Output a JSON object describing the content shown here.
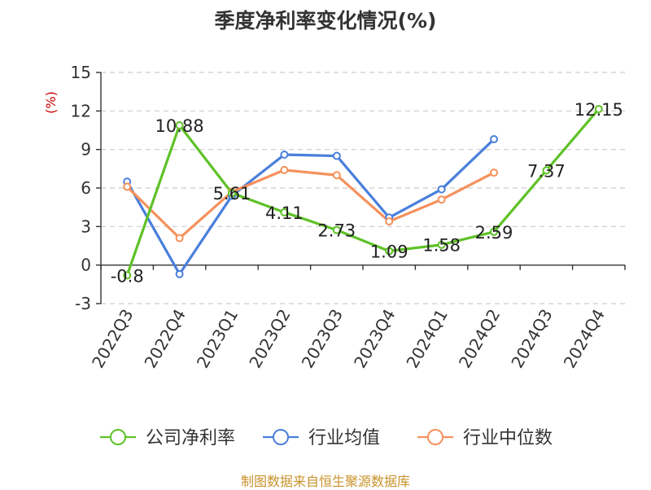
{
  "chart_data": {
    "type": "line",
    "title": "季度净利率变化情况(%)",
    "ylabel": "(%)",
    "xlabel": "",
    "categories": [
      "2022Q3",
      "2022Q4",
      "2023Q1",
      "2023Q2",
      "2023Q3",
      "2023Q4",
      "2024Q1",
      "2024Q2",
      "2024Q3",
      "2024Q4"
    ],
    "ylim": [
      -3,
      15
    ],
    "yticks": [
      -3,
      0,
      3,
      6,
      9,
      12,
      15
    ],
    "grid": true,
    "legend_position": "bottom",
    "series": [
      {
        "name": "公司净利率",
        "color": "#5ec227",
        "values": [
          -0.8,
          10.88,
          5.61,
          4.11,
          2.73,
          1.09,
          1.58,
          2.59,
          7.37,
          12.15
        ],
        "labels": [
          "-0.8",
          "10.88",
          "5.61",
          "4.11",
          "2.73",
          "1.09",
          "1.58",
          "2.59",
          "7.37",
          "12.15"
        ]
      },
      {
        "name": "行业均值",
        "color": "#4a7fdc",
        "values": [
          6.5,
          -0.7,
          5.4,
          8.6,
          8.5,
          3.7,
          5.9,
          9.8,
          null,
          null
        ]
      },
      {
        "name": "行业中位数",
        "color": "#f5915c",
        "values": [
          6.1,
          2.1,
          5.7,
          7.4,
          7.0,
          3.4,
          5.1,
          7.2,
          null,
          null
        ]
      }
    ]
  },
  "footer": {
    "source": "制图数据来自恒生聚源数据库"
  }
}
